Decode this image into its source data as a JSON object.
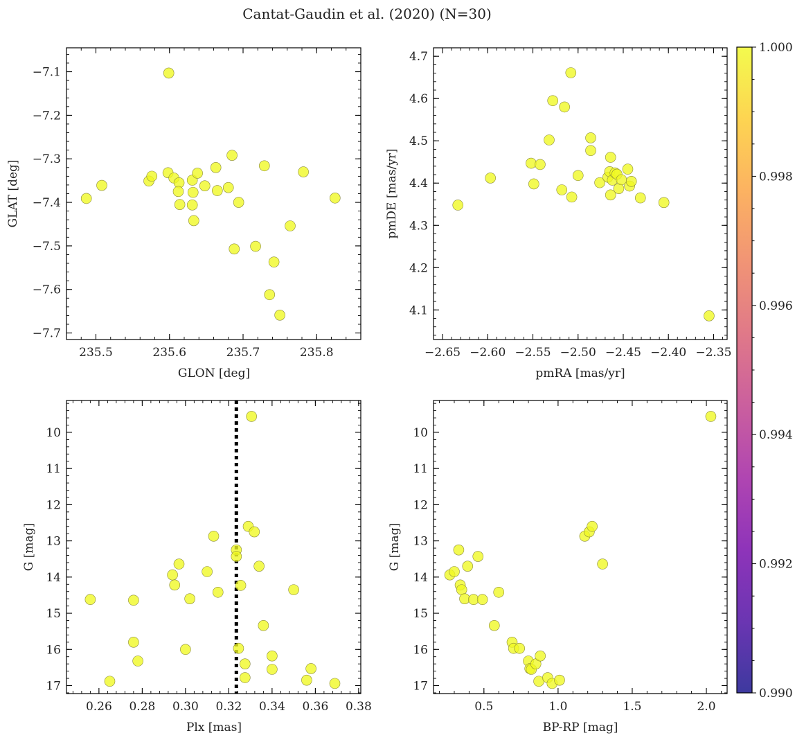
{
  "title": "Cantat-Gaudin et al. (2020) (N=30)",
  "point_color": "#f0f921",
  "chart_data": [
    {
      "type": "scatter",
      "id": "glon-glat",
      "xlabel": "GLON [deg]",
      "ylabel": "GLAT [deg]",
      "xlim": [
        235.46,
        235.86
      ],
      "ylim": [
        -7.715,
        -7.045
      ],
      "xticks": [
        235.5,
        235.6,
        235.7,
        235.8
      ],
      "xtick_labels": [
        "235.5",
        "235.6",
        "235.7",
        "235.8"
      ],
      "yticks": [
        -7.1,
        -7.2,
        -7.3,
        -7.4,
        -7.5,
        -7.6,
        -7.7
      ],
      "ytick_labels": [
        "−7.1",
        "−7.2",
        "−7.3",
        "−7.4",
        "−7.5",
        "−7.6",
        "−7.7"
      ],
      "points": [
        [
          235.599,
          -7.103
        ],
        [
          235.487,
          -7.391
        ],
        [
          235.508,
          -7.361
        ],
        [
          235.572,
          -7.351
        ],
        [
          235.576,
          -7.34
        ],
        [
          235.598,
          -7.332
        ],
        [
          235.606,
          -7.344
        ],
        [
          235.613,
          -7.355
        ],
        [
          235.612,
          -7.375
        ],
        [
          235.614,
          -7.405
        ],
        [
          235.631,
          -7.349
        ],
        [
          235.632,
          -7.377
        ],
        [
          235.631,
          -7.406
        ],
        [
          235.633,
          -7.442
        ],
        [
          235.638,
          -7.333
        ],
        [
          235.648,
          -7.362
        ],
        [
          235.663,
          -7.32
        ],
        [
          235.665,
          -7.373
        ],
        [
          235.68,
          -7.366
        ],
        [
          235.685,
          -7.292
        ],
        [
          235.688,
          -7.507
        ],
        [
          235.694,
          -7.4
        ],
        [
          235.717,
          -7.501
        ],
        [
          235.729,
          -7.316
        ],
        [
          235.736,
          -7.612
        ],
        [
          235.742,
          -7.537
        ],
        [
          235.75,
          -7.659
        ],
        [
          235.764,
          -7.454
        ],
        [
          235.782,
          -7.33
        ],
        [
          235.825,
          -7.39
        ]
      ]
    },
    {
      "type": "scatter",
      "id": "pmra-pmde",
      "xlabel": "pmRA [mas/yr]",
      "ylabel": "pmDE [mas/yr]",
      "xlim": [
        -2.66,
        -2.335
      ],
      "ylim": [
        4.03,
        4.72
      ],
      "xticks": [
        -2.65,
        -2.6,
        -2.55,
        -2.5,
        -2.45,
        -2.4,
        -2.35
      ],
      "xtick_labels": [
        "−2.65",
        "−2.60",
        "−2.55",
        "−2.50",
        "−2.45",
        "−2.40",
        "−2.35"
      ],
      "yticks": [
        4.1,
        4.2,
        4.3,
        4.4,
        4.5,
        4.6,
        4.7
      ],
      "ytick_labels": [
        "4.1",
        "4.2",
        "4.3",
        "4.4",
        "4.5",
        "4.6",
        "4.7"
      ],
      "points": [
        [
          -2.633,
          4.348
        ],
        [
          -2.597,
          4.412
        ],
        [
          -2.552,
          4.447
        ],
        [
          -2.549,
          4.398
        ],
        [
          -2.542,
          4.444
        ],
        [
          -2.532,
          4.502
        ],
        [
          -2.528,
          4.595
        ],
        [
          -2.518,
          4.384
        ],
        [
          -2.515,
          4.58
        ],
        [
          -2.508,
          4.661
        ],
        [
          -2.507,
          4.367
        ],
        [
          -2.5,
          4.418
        ],
        [
          -2.486,
          4.507
        ],
        [
          -2.486,
          4.477
        ],
        [
          -2.476,
          4.401
        ],
        [
          -2.467,
          4.414
        ],
        [
          -2.465,
          4.427
        ],
        [
          -2.464,
          4.461
        ],
        [
          -2.464,
          4.372
        ],
        [
          -2.462,
          4.407
        ],
        [
          -2.459,
          4.424
        ],
        [
          -2.457,
          4.421
        ],
        [
          -2.455,
          4.387
        ],
        [
          -2.452,
          4.408
        ],
        [
          -2.445,
          4.433
        ],
        [
          -2.443,
          4.393
        ],
        [
          -2.441,
          4.404
        ],
        [
          -2.431,
          4.365
        ],
        [
          -2.405,
          4.354
        ],
        [
          -2.355,
          4.086
        ]
      ]
    },
    {
      "type": "scatter",
      "id": "plx-g",
      "xlabel": "Plx [mas]",
      "ylabel": "G [mag]",
      "xlim": [
        0.245,
        0.381
      ],
      "ylim": [
        17.22,
        9.12
      ],
      "xticks": [
        0.26,
        0.28,
        0.3,
        0.32,
        0.34,
        0.36,
        0.38
      ],
      "xtick_labels": [
        "0.26",
        "0.28",
        "0.30",
        "0.32",
        "0.34",
        "0.36",
        "0.38"
      ],
      "yticks": [
        10,
        11,
        12,
        13,
        14,
        15,
        16,
        17
      ],
      "ytick_labels": [
        "10",
        "11",
        "12",
        "13",
        "14",
        "15",
        "16",
        "17"
      ],
      "vline": 0.3235,
      "points": [
        [
          0.256,
          14.62
        ],
        [
          0.265,
          16.88
        ],
        [
          0.276,
          14.64
        ],
        [
          0.276,
          15.8
        ],
        [
          0.278,
          16.32
        ],
        [
          0.294,
          13.94
        ],
        [
          0.295,
          14.22
        ],
        [
          0.297,
          13.64
        ],
        [
          0.3,
          16.0
        ],
        [
          0.302,
          14.6
        ],
        [
          0.31,
          13.85
        ],
        [
          0.313,
          12.87
        ],
        [
          0.315,
          14.42
        ],
        [
          0.3235,
          13.25
        ],
        [
          0.3235,
          13.43
        ],
        [
          0.3245,
          15.97
        ],
        [
          0.3255,
          14.23
        ],
        [
          0.3275,
          16.4
        ],
        [
          0.3275,
          16.78
        ],
        [
          0.329,
          12.6
        ],
        [
          0.3305,
          9.56
        ],
        [
          0.3318,
          12.75
        ],
        [
          0.334,
          13.7
        ],
        [
          0.336,
          15.34
        ],
        [
          0.34,
          16.18
        ],
        [
          0.34,
          16.55
        ],
        [
          0.35,
          14.35
        ],
        [
          0.356,
          16.85
        ],
        [
          0.358,
          16.53
        ],
        [
          0.369,
          16.94
        ]
      ]
    },
    {
      "type": "scatter",
      "id": "bprp-g",
      "xlabel": "BP-RP [mag]",
      "ylabel": "G [mag]",
      "xlim": [
        0.16,
        2.14
      ],
      "ylim": [
        17.22,
        9.12
      ],
      "xticks": [
        0.5,
        1.0,
        1.5,
        2.0
      ],
      "xtick_labels": [
        "0.5",
        "1.0",
        "1.5",
        "2.0"
      ],
      "yticks": [
        10,
        11,
        12,
        13,
        14,
        15,
        16,
        17
      ],
      "ytick_labels": [
        "10",
        "11",
        "12",
        "13",
        "14",
        "15",
        "16",
        "17"
      ],
      "points": [
        [
          0.27,
          13.94
        ],
        [
          0.3,
          13.85
        ],
        [
          0.33,
          13.25
        ],
        [
          0.34,
          14.22
        ],
        [
          0.35,
          14.35
        ],
        [
          0.37,
          14.6
        ],
        [
          0.39,
          13.7
        ],
        [
          0.43,
          14.62
        ],
        [
          0.46,
          13.43
        ],
        [
          0.49,
          14.62
        ],
        [
          0.57,
          15.34
        ],
        [
          0.6,
          14.42
        ],
        [
          0.69,
          15.8
        ],
        [
          0.7,
          15.97
        ],
        [
          0.74,
          15.97
        ],
        [
          0.8,
          16.32
        ],
        [
          0.81,
          16.53
        ],
        [
          0.82,
          16.55
        ],
        [
          0.85,
          16.4
        ],
        [
          0.87,
          16.88
        ],
        [
          0.88,
          16.18
        ],
        [
          0.93,
          16.78
        ],
        [
          0.96,
          16.94
        ],
        [
          1.01,
          16.85
        ],
        [
          1.18,
          12.87
        ],
        [
          1.21,
          12.75
        ],
        [
          1.23,
          12.6
        ],
        [
          1.3,
          13.64
        ],
        [
          2.03,
          9.56
        ]
      ]
    }
  ],
  "colorbar": {
    "min": 0.99,
    "max": 1.0,
    "ticks": [
      0.99,
      0.992,
      0.994,
      0.996,
      0.998,
      1.0
    ],
    "tick_labels": [
      "0.990",
      "0.992",
      "0.994",
      "0.996",
      "0.998",
      "1.000"
    ],
    "colors": [
      "#0d0887",
      "#46039f",
      "#7201a8",
      "#9c179e",
      "#bd3786",
      "#d8576b",
      "#ed7953",
      "#fb9f3a",
      "#fdca26",
      "#f0f921"
    ]
  }
}
